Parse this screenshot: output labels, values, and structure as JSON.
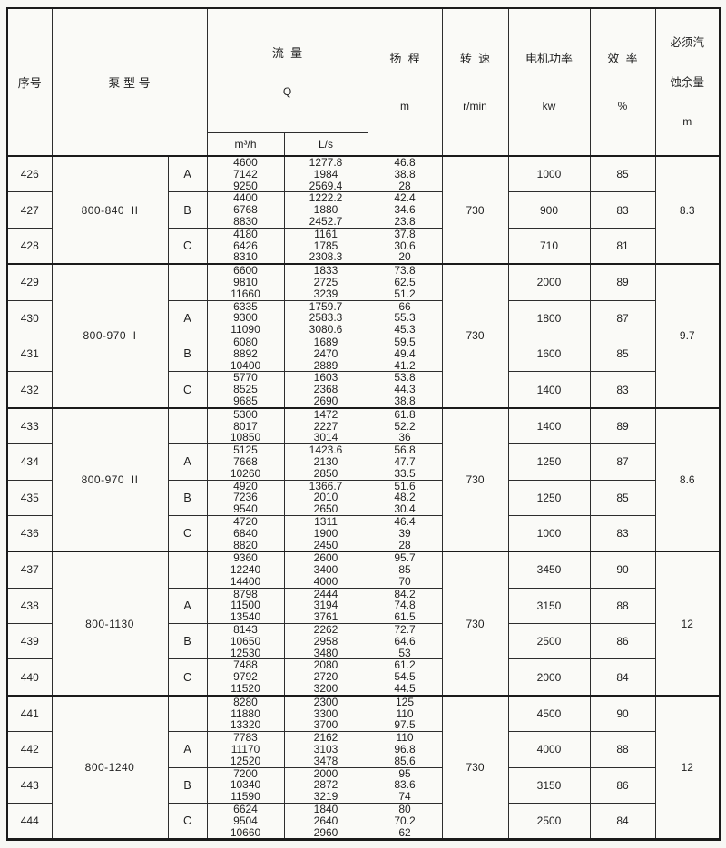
{
  "header": {
    "serial": "序号",
    "model": "泵 型 号",
    "flow_title": "流  量",
    "flow_symbol": "Q",
    "flow_unit_m3h": "m³/h",
    "flow_unit_ls": "L/s",
    "head_title": "扬  程",
    "head_unit": "m",
    "speed_title": "转  速",
    "speed_unit": "r/min",
    "power_title": "电机功率",
    "power_unit": "kw",
    "eff_title": "效  率",
    "eff_unit": "%",
    "npsh_line1": "必须汽",
    "npsh_line2": "蚀余量",
    "npsh_unit": "m"
  },
  "groups": [
    {
      "model": "800-840  II",
      "speed": "730",
      "npsh": "8.3",
      "rows": [
        {
          "serial": "426",
          "variant": "A",
          "flow_m3h": [
            "4600",
            "7142",
            "9250"
          ],
          "flow_ls": [
            "1277.8",
            "1984",
            "2569.4"
          ],
          "head": [
            "46.8",
            "38.8",
            "28"
          ],
          "power": "1000",
          "eff": "85"
        },
        {
          "serial": "427",
          "variant": "B",
          "flow_m3h": [
            "4400",
            "6768",
            "8830"
          ],
          "flow_ls": [
            "1222.2",
            "1880",
            "2452.7"
          ],
          "head": [
            "42.4",
            "34.6",
            "23.8"
          ],
          "power": "900",
          "eff": "83"
        },
        {
          "serial": "428",
          "variant": "C",
          "flow_m3h": [
            "4180",
            "6426",
            "8310"
          ],
          "flow_ls": [
            "1161",
            "1785",
            "2308.3"
          ],
          "head": [
            "37.8",
            "30.6",
            "20"
          ],
          "power": "710",
          "eff": "81"
        }
      ]
    },
    {
      "model": "800-970  I",
      "speed": "730",
      "npsh": "9.7",
      "rows": [
        {
          "serial": "429",
          "variant": "",
          "flow_m3h": [
            "6600",
            "9810",
            "11660"
          ],
          "flow_ls": [
            "1833",
            "2725",
            "3239"
          ],
          "head": [
            "73.8",
            "62.5",
            "51.2"
          ],
          "power": "2000",
          "eff": "89"
        },
        {
          "serial": "430",
          "variant": "A",
          "flow_m3h": [
            "6335",
            "9300",
            "11090"
          ],
          "flow_ls": [
            "1759.7",
            "2583.3",
            "3080.6"
          ],
          "head": [
            "66",
            "55.3",
            "45.3"
          ],
          "power": "1800",
          "eff": "87"
        },
        {
          "serial": "431",
          "variant": "B",
          "flow_m3h": [
            "6080",
            "8892",
            "10400"
          ],
          "flow_ls": [
            "1689",
            "2470",
            "2889"
          ],
          "head": [
            "59.5",
            "49.4",
            "41.2"
          ],
          "power": "1600",
          "eff": "85"
        },
        {
          "serial": "432",
          "variant": "C",
          "flow_m3h": [
            "5770",
            "8525",
            "9685"
          ],
          "flow_ls": [
            "1603",
            "2368",
            "2690"
          ],
          "head": [
            "53.8",
            "44.3",
            "38.8"
          ],
          "power": "1400",
          "eff": "83"
        }
      ]
    },
    {
      "model": "800-970  II",
      "speed": "730",
      "npsh": "8.6",
      "rows": [
        {
          "serial": "433",
          "variant": "",
          "flow_m3h": [
            "5300",
            "8017",
            "10850"
          ],
          "flow_ls": [
            "1472",
            "2227",
            "3014"
          ],
          "head": [
            "61.8",
            "52.2",
            "36"
          ],
          "power": "1400",
          "eff": "89"
        },
        {
          "serial": "434",
          "variant": "A",
          "flow_m3h": [
            "5125",
            "7668",
            "10260"
          ],
          "flow_ls": [
            "1423.6",
            "2130",
            "2850"
          ],
          "head": [
            "56.8",
            "47.7",
            "33.5"
          ],
          "power": "1250",
          "eff": "87"
        },
        {
          "serial": "435",
          "variant": "B",
          "flow_m3h": [
            "4920",
            "7236",
            "9540"
          ],
          "flow_ls": [
            "1366.7",
            "2010",
            "2650"
          ],
          "head": [
            "51.6",
            "48.2",
            "30.4"
          ],
          "power": "1250",
          "eff": "85"
        },
        {
          "serial": "436",
          "variant": "C",
          "flow_m3h": [
            "4720",
            "6840",
            "8820"
          ],
          "flow_ls": [
            "1311",
            "1900",
            "2450"
          ],
          "head": [
            "46.4",
            "39",
            "28"
          ],
          "power": "1000",
          "eff": "83"
        }
      ]
    },
    {
      "model": "800-1130",
      "speed": "730",
      "npsh": "12",
      "rows": [
        {
          "serial": "437",
          "variant": "",
          "flow_m3h": [
            "9360",
            "12240",
            "14400"
          ],
          "flow_ls": [
            "2600",
            "3400",
            "4000"
          ],
          "head": [
            "95.7",
            "85",
            "70"
          ],
          "power": "3450",
          "eff": "90"
        },
        {
          "serial": "438",
          "variant": "A",
          "flow_m3h": [
            "8798",
            "11500",
            "13540"
          ],
          "flow_ls": [
            "2444",
            "3194",
            "3761"
          ],
          "head": [
            "84.2",
            "74.8",
            "61.5"
          ],
          "power": "3150",
          "eff": "88"
        },
        {
          "serial": "439",
          "variant": "B",
          "flow_m3h": [
            "8143",
            "10650",
            "12530"
          ],
          "flow_ls": [
            "2262",
            "2958",
            "3480"
          ],
          "head": [
            "72.7",
            "64.6",
            "53"
          ],
          "power": "2500",
          "eff": "86"
        },
        {
          "serial": "440",
          "variant": "C",
          "flow_m3h": [
            "7488",
            "9792",
            "11520"
          ],
          "flow_ls": [
            "2080",
            "2720",
            "3200"
          ],
          "head": [
            "61.2",
            "54.5",
            "44.5"
          ],
          "power": "2000",
          "eff": "84"
        }
      ]
    },
    {
      "model": "800-1240",
      "speed": "730",
      "npsh": "12",
      "rows": [
        {
          "serial": "441",
          "variant": "",
          "flow_m3h": [
            "8280",
            "11880",
            "13320"
          ],
          "flow_ls": [
            "2300",
            "3300",
            "3700"
          ],
          "head": [
            "125",
            "110",
            "97.5"
          ],
          "power": "4500",
          "eff": "90"
        },
        {
          "serial": "442",
          "variant": "A",
          "flow_m3h": [
            "7783",
            "11170",
            "12520"
          ],
          "flow_ls": [
            "2162",
            "3103",
            "3478"
          ],
          "head": [
            "110",
            "96.8",
            "85.6"
          ],
          "power": "4000",
          "eff": "88"
        },
        {
          "serial": "443",
          "variant": "B",
          "flow_m3h": [
            "7200",
            "10340",
            "11590"
          ],
          "flow_ls": [
            "2000",
            "2872",
            "3219"
          ],
          "head": [
            "95",
            "83.6",
            "74"
          ],
          "power": "3150",
          "eff": "86"
        },
        {
          "serial": "444",
          "variant": "C",
          "flow_m3h": [
            "6624",
            "9504",
            "10660"
          ],
          "flow_ls": [
            "1840",
            "2640",
            "2960"
          ],
          "head": [
            "80",
            "70.2",
            "62"
          ],
          "power": "2500",
          "eff": "84"
        }
      ]
    }
  ]
}
